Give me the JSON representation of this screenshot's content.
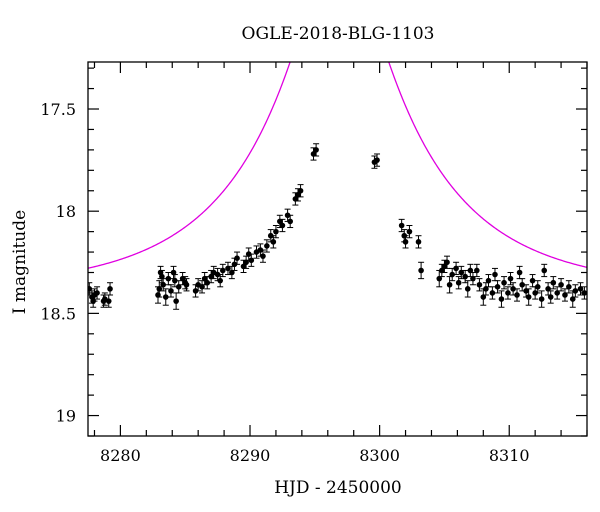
{
  "chart_data": {
    "type": "scatter",
    "title": "OGLE-2018-BLG-1103",
    "xlabel": "HJD - 2450000",
    "ylabel": "I magnitude",
    "xlim": [
      8277.5,
      8316
    ],
    "ylim": [
      19.1,
      17.27
    ],
    "y_inverted": true,
    "grid": false,
    "x_major_ticks": [
      8280,
      8290,
      8300,
      8310
    ],
    "x_tick_labels": [
      "8280",
      "8290",
      "8300",
      "8310"
    ],
    "y_major_ticks": [
      17.5,
      18,
      18.5,
      19
    ],
    "y_tick_labels": [
      "17.5",
      "18",
      "18.5",
      "19"
    ],
    "x_minor_step": 2,
    "y_minor_step": 0.1,
    "colors": {
      "points": "#000000",
      "model": "#e000e0"
    },
    "model": {
      "t0": 8296.9,
      "u0": 0.2,
      "tE": 12,
      "baseline": 18.39
    },
    "points": [
      {
        "x": 8277.6,
        "y": 18.38,
        "err": 0.03
      },
      {
        "x": 8277.8,
        "y": 18.42,
        "err": 0.03
      },
      {
        "x": 8277.9,
        "y": 18.44,
        "err": 0.03
      },
      {
        "x": 8278.0,
        "y": 18.41,
        "err": 0.03
      },
      {
        "x": 8278.2,
        "y": 18.4,
        "err": 0.03
      },
      {
        "x": 8278.7,
        "y": 18.44,
        "err": 0.03
      },
      {
        "x": 8278.8,
        "y": 18.43,
        "err": 0.03
      },
      {
        "x": 8279.1,
        "y": 18.44,
        "err": 0.03
      },
      {
        "x": 8279.2,
        "y": 18.38,
        "err": 0.03
      },
      {
        "x": 8282.9,
        "y": 18.41,
        "err": 0.04
      },
      {
        "x": 8283.0,
        "y": 18.38,
        "err": 0.04
      },
      {
        "x": 8283.1,
        "y": 18.3,
        "err": 0.03
      },
      {
        "x": 8283.2,
        "y": 18.32,
        "err": 0.03
      },
      {
        "x": 8283.3,
        "y": 18.36,
        "err": 0.03
      },
      {
        "x": 8283.5,
        "y": 18.42,
        "err": 0.04
      },
      {
        "x": 8283.7,
        "y": 18.33,
        "err": 0.03
      },
      {
        "x": 8283.9,
        "y": 18.39,
        "err": 0.03
      },
      {
        "x": 8284.1,
        "y": 18.3,
        "err": 0.03
      },
      {
        "x": 8284.2,
        "y": 18.34,
        "err": 0.03
      },
      {
        "x": 8284.3,
        "y": 18.44,
        "err": 0.04
      },
      {
        "x": 8284.5,
        "y": 18.37,
        "err": 0.03
      },
      {
        "x": 8284.8,
        "y": 18.33,
        "err": 0.03
      },
      {
        "x": 8285.0,
        "y": 18.35,
        "err": 0.03
      },
      {
        "x": 8285.1,
        "y": 18.36,
        "err": 0.03
      },
      {
        "x": 8285.8,
        "y": 18.39,
        "err": 0.03
      },
      {
        "x": 8286.0,
        "y": 18.36,
        "err": 0.03
      },
      {
        "x": 8286.3,
        "y": 18.37,
        "err": 0.03
      },
      {
        "x": 8286.5,
        "y": 18.33,
        "err": 0.03
      },
      {
        "x": 8286.7,
        "y": 18.35,
        "err": 0.03
      },
      {
        "x": 8287.0,
        "y": 18.32,
        "err": 0.03
      },
      {
        "x": 8287.2,
        "y": 18.3,
        "err": 0.03
      },
      {
        "x": 8287.5,
        "y": 18.31,
        "err": 0.03
      },
      {
        "x": 8287.7,
        "y": 18.34,
        "err": 0.03
      },
      {
        "x": 8287.9,
        "y": 18.29,
        "err": 0.03
      },
      {
        "x": 8288.3,
        "y": 18.28,
        "err": 0.03
      },
      {
        "x": 8288.6,
        "y": 18.3,
        "err": 0.03
      },
      {
        "x": 8288.8,
        "y": 18.26,
        "err": 0.03
      },
      {
        "x": 8289.0,
        "y": 18.23,
        "err": 0.03
      },
      {
        "x": 8289.5,
        "y": 18.27,
        "err": 0.03
      },
      {
        "x": 8289.7,
        "y": 18.25,
        "err": 0.03
      },
      {
        "x": 8289.9,
        "y": 18.21,
        "err": 0.03
      },
      {
        "x": 8290.1,
        "y": 18.24,
        "err": 0.03
      },
      {
        "x": 8290.5,
        "y": 18.2,
        "err": 0.03
      },
      {
        "x": 8290.8,
        "y": 18.19,
        "err": 0.03
      },
      {
        "x": 8291.0,
        "y": 18.22,
        "err": 0.03
      },
      {
        "x": 8291.3,
        "y": 18.17,
        "err": 0.03
      },
      {
        "x": 8291.6,
        "y": 18.12,
        "err": 0.03
      },
      {
        "x": 8291.8,
        "y": 18.15,
        "err": 0.03
      },
      {
        "x": 8292.0,
        "y": 18.1,
        "err": 0.03
      },
      {
        "x": 8292.3,
        "y": 18.05,
        "err": 0.03
      },
      {
        "x": 8292.5,
        "y": 18.07,
        "err": 0.03
      },
      {
        "x": 8292.9,
        "y": 18.02,
        "err": 0.03
      },
      {
        "x": 8293.1,
        "y": 18.05,
        "err": 0.03
      },
      {
        "x": 8293.5,
        "y": 17.94,
        "err": 0.03
      },
      {
        "x": 8293.7,
        "y": 17.92,
        "err": 0.03
      },
      {
        "x": 8293.9,
        "y": 17.9,
        "err": 0.03
      },
      {
        "x": 8294.9,
        "y": 17.72,
        "err": 0.03
      },
      {
        "x": 8295.1,
        "y": 17.7,
        "err": 0.03
      },
      {
        "x": 8299.6,
        "y": 17.76,
        "err": 0.03
      },
      {
        "x": 8299.8,
        "y": 17.75,
        "err": 0.03
      },
      {
        "x": 8301.7,
        "y": 18.07,
        "err": 0.03
      },
      {
        "x": 8301.9,
        "y": 18.12,
        "err": 0.03
      },
      {
        "x": 8302.0,
        "y": 18.15,
        "err": 0.03
      },
      {
        "x": 8302.3,
        "y": 18.1,
        "err": 0.03
      },
      {
        "x": 8303.0,
        "y": 18.15,
        "err": 0.03
      },
      {
        "x": 8303.2,
        "y": 18.29,
        "err": 0.04
      },
      {
        "x": 8304.6,
        "y": 18.33,
        "err": 0.04
      },
      {
        "x": 8304.8,
        "y": 18.29,
        "err": 0.03
      },
      {
        "x": 8305.0,
        "y": 18.27,
        "err": 0.03
      },
      {
        "x": 8305.2,
        "y": 18.25,
        "err": 0.03
      },
      {
        "x": 8305.4,
        "y": 18.36,
        "err": 0.04
      },
      {
        "x": 8305.6,
        "y": 18.31,
        "err": 0.03
      },
      {
        "x": 8305.9,
        "y": 18.28,
        "err": 0.03
      },
      {
        "x": 8306.1,
        "y": 18.35,
        "err": 0.03
      },
      {
        "x": 8306.3,
        "y": 18.3,
        "err": 0.03
      },
      {
        "x": 8306.6,
        "y": 18.32,
        "err": 0.03
      },
      {
        "x": 8306.8,
        "y": 18.38,
        "err": 0.04
      },
      {
        "x": 8307.0,
        "y": 18.29,
        "err": 0.03
      },
      {
        "x": 8307.2,
        "y": 18.33,
        "err": 0.03
      },
      {
        "x": 8307.5,
        "y": 18.29,
        "err": 0.03
      },
      {
        "x": 8307.7,
        "y": 18.36,
        "err": 0.03
      },
      {
        "x": 8308.0,
        "y": 18.42,
        "err": 0.04
      },
      {
        "x": 8308.2,
        "y": 18.38,
        "err": 0.03
      },
      {
        "x": 8308.4,
        "y": 18.34,
        "err": 0.03
      },
      {
        "x": 8308.7,
        "y": 18.4,
        "err": 0.03
      },
      {
        "x": 8308.9,
        "y": 18.31,
        "err": 0.03
      },
      {
        "x": 8309.1,
        "y": 18.37,
        "err": 0.03
      },
      {
        "x": 8309.4,
        "y": 18.43,
        "err": 0.04
      },
      {
        "x": 8309.6,
        "y": 18.35,
        "err": 0.03
      },
      {
        "x": 8309.9,
        "y": 18.4,
        "err": 0.03
      },
      {
        "x": 8310.1,
        "y": 18.33,
        "err": 0.03
      },
      {
        "x": 8310.3,
        "y": 18.38,
        "err": 0.03
      },
      {
        "x": 8310.6,
        "y": 18.41,
        "err": 0.03
      },
      {
        "x": 8310.8,
        "y": 18.3,
        "err": 0.03
      },
      {
        "x": 8311.0,
        "y": 18.36,
        "err": 0.03
      },
      {
        "x": 8311.3,
        "y": 18.39,
        "err": 0.03
      },
      {
        "x": 8311.5,
        "y": 18.42,
        "err": 0.04
      },
      {
        "x": 8311.8,
        "y": 18.34,
        "err": 0.03
      },
      {
        "x": 8312.0,
        "y": 18.4,
        "err": 0.03
      },
      {
        "x": 8312.2,
        "y": 18.37,
        "err": 0.03
      },
      {
        "x": 8312.5,
        "y": 18.43,
        "err": 0.04
      },
      {
        "x": 8312.7,
        "y": 18.29,
        "err": 0.03
      },
      {
        "x": 8313.0,
        "y": 18.38,
        "err": 0.03
      },
      {
        "x": 8313.2,
        "y": 18.42,
        "err": 0.03
      },
      {
        "x": 8313.4,
        "y": 18.35,
        "err": 0.03
      },
      {
        "x": 8313.7,
        "y": 18.4,
        "err": 0.03
      },
      {
        "x": 8314.0,
        "y": 18.36,
        "err": 0.03
      },
      {
        "x": 8314.3,
        "y": 18.41,
        "err": 0.03
      },
      {
        "x": 8314.6,
        "y": 18.37,
        "err": 0.03
      },
      {
        "x": 8314.9,
        "y": 18.43,
        "err": 0.04
      },
      {
        "x": 8315.1,
        "y": 18.39,
        "err": 0.03
      },
      {
        "x": 8315.5,
        "y": 18.38,
        "err": 0.03
      },
      {
        "x": 8315.8,
        "y": 18.4,
        "err": 0.03
      }
    ]
  }
}
